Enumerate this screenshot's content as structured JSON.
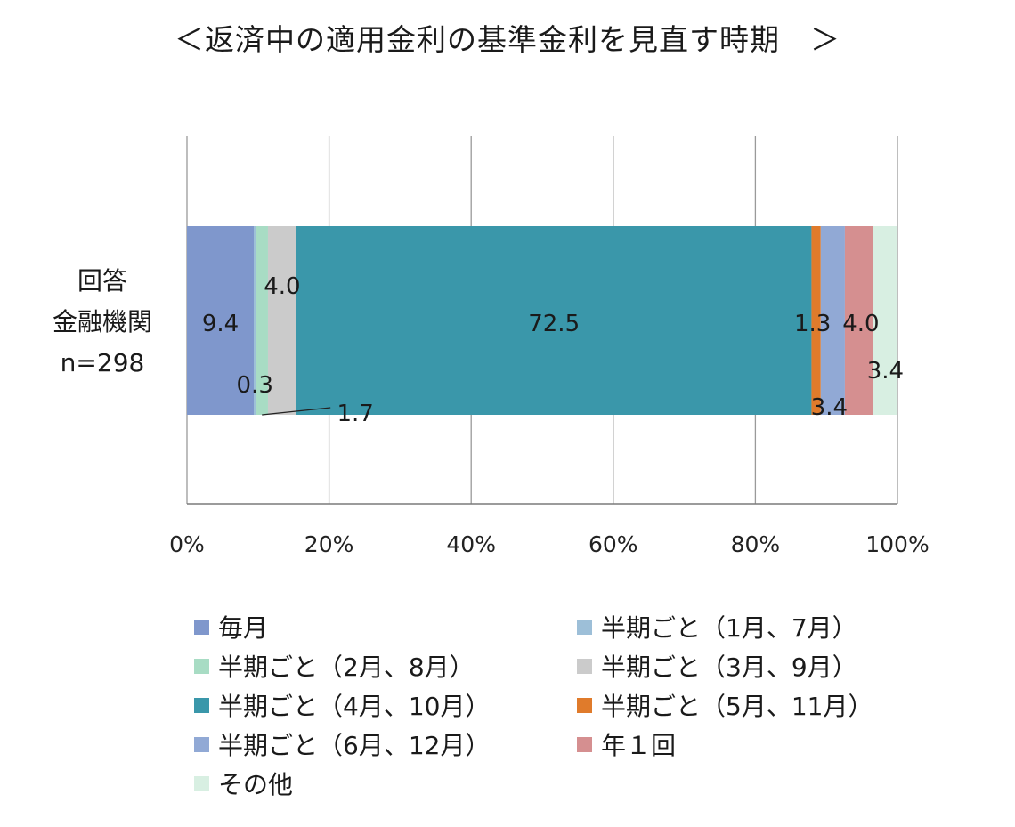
{
  "chart_data": {
    "type": "bar",
    "stacked": true,
    "orientation": "horizontal",
    "title": "＜返済中の適用金利の基準金利を見直す時期　＞",
    "category_label_lines": [
      "回答",
      "金融機関",
      "n=298"
    ],
    "categories": [
      "回答金融機関 n=298"
    ],
    "xlim": [
      0,
      100
    ],
    "x_ticks": [
      "0%",
      "20%",
      "40%",
      "60%",
      "80%",
      "100%"
    ],
    "grid": "vertical",
    "legend_position": "bottom",
    "series": [
      {
        "name": "毎月",
        "values": [
          9.4
        ],
        "color": "#7f97cc",
        "label": "9.4"
      },
      {
        "name": "半期ごと（1月、7月）",
        "values": [
          0.3
        ],
        "color": "#9dbfd8",
        "label": "0.3"
      },
      {
        "name": "半期ごと（2月、8月）",
        "values": [
          1.7
        ],
        "color": "#a8dcc4",
        "label": "1.7"
      },
      {
        "name": "半期ごと（3月、9月）",
        "values": [
          4.0
        ],
        "color": "#cbcbcb",
        "label": "4.0"
      },
      {
        "name": "半期ごと（4月、10月）",
        "values": [
          72.5
        ],
        "color": "#3a97aa",
        "label": "72.5"
      },
      {
        "name": "半期ごと（5月、11月）",
        "values": [
          1.3
        ],
        "color": "#e07b2b",
        "label": "1.3"
      },
      {
        "name": "半期ごと（6月、12月）",
        "values": [
          3.4
        ],
        "color": "#91a9d5",
        "label": "3.4"
      },
      {
        "name": "年１回",
        "values": [
          4.0
        ],
        "color": "#d58f90",
        "label": "4.0"
      },
      {
        "name": "その他",
        "values": [
          3.4
        ],
        "color": "#d8efe2",
        "label": "3.4"
      }
    ]
  }
}
